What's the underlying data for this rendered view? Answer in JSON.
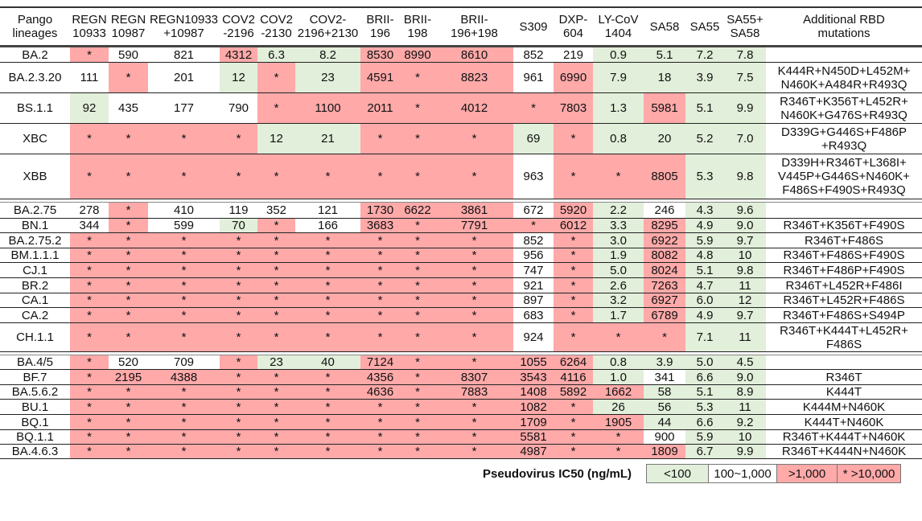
{
  "colors": {
    "low": "#e2efda",
    "mid": "#ffffff",
    "high": "#ffa9a9"
  },
  "headers": [
    "Pango\nlineages",
    "REGN\n10933",
    "REGN\n10987",
    "REGN10933\n+10987",
    "COV2\n-2196",
    "COV2\n-2130",
    "COV2-\n2196+2130",
    "BRII-\n196",
    "BRII-\n198",
    "BRII-\n196+198",
    "S309",
    "DXP-\n604",
    "LY-CoV\n1404",
    "SA58",
    "SA55",
    "SA55+\nSA58",
    "Additional RBD\nmutations"
  ],
  "groups": [
    [
      {
        "lineage": "BA.2",
        "values": [
          "*",
          "590",
          "821",
          "4312",
          "6.3",
          "8.2",
          "8530",
          "8990",
          "8610",
          "852",
          "219",
          "0.9",
          "5.1",
          "7.2",
          "7.8"
        ],
        "mutations": ""
      },
      {
        "lineage": "BA.2.3.20",
        "values": [
          "111",
          "*",
          "201",
          "12",
          "*",
          "23",
          "4591",
          "*",
          "8823",
          "961",
          "6990",
          "7.9",
          "18",
          "3.9",
          "7.5"
        ],
        "mutations": "K444R+N450D+L452M+\nN460K+A484R+R493Q"
      },
      {
        "lineage": "BS.1.1",
        "values": [
          "92",
          "435",
          "177",
          "790",
          "*",
          "1100",
          "2011",
          "*",
          "4012",
          "*",
          "7803",
          "1.3",
          "5981",
          "5.1",
          "9.9"
        ],
        "mutations": "R346T+K356T+L452R+\nN460K+G476S+R493Q"
      },
      {
        "lineage": "XBC",
        "values": [
          "*",
          "*",
          "*",
          "*",
          "12",
          "21",
          "*",
          "*",
          "*",
          "69",
          "*",
          "0.8",
          "20",
          "5.2",
          "7.0"
        ],
        "mutations": "D339G+G446S+F486P\n+R493Q"
      },
      {
        "lineage": "XBB",
        "values": [
          "*",
          "*",
          "*",
          "*",
          "*",
          "*",
          "*",
          "*",
          "*",
          "963",
          "*",
          "*",
          "8805",
          "5.3",
          "9.8"
        ],
        "mutations": "D339H+R346T+L368I+\nV445P+G446S+N460K+\nF486S+F490S+R493Q"
      }
    ],
    [
      {
        "lineage": "BA.2.75",
        "values": [
          "278",
          "*",
          "410",
          "119",
          "352",
          "121",
          "1730",
          "6622",
          "3861",
          "672",
          "5920",
          "2.2",
          "246",
          "4.3",
          "9.6"
        ],
        "mutations": ""
      },
      {
        "lineage": "BN.1",
        "values": [
          "344",
          "*",
          "599",
          "70",
          "*",
          "166",
          "3683",
          "*",
          "7791",
          "*",
          "6012",
          "3.3",
          "8295",
          "4.9",
          "9.0"
        ],
        "mutations": "R346T+K356T+F490S"
      },
      {
        "lineage": "BA.2.75.2",
        "values": [
          "*",
          "*",
          "*",
          "*",
          "*",
          "*",
          "*",
          "*",
          "*",
          "852",
          "*",
          "3.0",
          "6922",
          "5.9",
          "9.7"
        ],
        "mutations": "R346T+F486S"
      },
      {
        "lineage": "BM.1.1.1",
        "values": [
          "*",
          "*",
          "*",
          "*",
          "*",
          "*",
          "*",
          "*",
          "*",
          "956",
          "*",
          "1.9",
          "8082",
          "4.8",
          "10"
        ],
        "mutations": "R346T+F486S+F490S"
      },
      {
        "lineage": "CJ.1",
        "values": [
          "*",
          "*",
          "*",
          "*",
          "*",
          "*",
          "*",
          "*",
          "*",
          "747",
          "*",
          "5.0",
          "8024",
          "5.1",
          "9.8"
        ],
        "mutations": "R346T+F486P+F490S"
      },
      {
        "lineage": "BR.2",
        "values": [
          "*",
          "*",
          "*",
          "*",
          "*",
          "*",
          "*",
          "*",
          "*",
          "921",
          "*",
          "2.6",
          "7263",
          "4.7",
          "11"
        ],
        "mutations": "R346T+L452R+F486I"
      },
      {
        "lineage": "CA.1",
        "values": [
          "*",
          "*",
          "*",
          "*",
          "*",
          "*",
          "*",
          "*",
          "*",
          "897",
          "*",
          "3.2",
          "6927",
          "6.0",
          "12"
        ],
        "mutations": "R346T+L452R+F486S"
      },
      {
        "lineage": "CA.2",
        "values": [
          "*",
          "*",
          "*",
          "*",
          "*",
          "*",
          "*",
          "*",
          "*",
          "683",
          "*",
          "1.7",
          "6789",
          "4.9",
          "9.7"
        ],
        "mutations": "R346T+F486S+S494P"
      },
      {
        "lineage": "CH.1.1",
        "values": [
          "*",
          "*",
          "*",
          "*",
          "*",
          "*",
          "*",
          "*",
          "*",
          "924",
          "*",
          "*",
          "*",
          "7.1",
          "11"
        ],
        "mutations": "R346T+K444T+L452R+\nF486S"
      }
    ],
    [
      {
        "lineage": "BA.4/5",
        "values": [
          "*",
          "520",
          "709",
          "*",
          "23",
          "40",
          "7124",
          "*",
          "*",
          "1055",
          "6264",
          "0.8",
          "3.9",
          "5.0",
          "4.5"
        ],
        "mutations": ""
      },
      {
        "lineage": "BF.7",
        "values": [
          "*",
          "2195",
          "4388",
          "*",
          "*",
          "*",
          "4356",
          "*",
          "8307",
          "3543",
          "4116",
          "1.0",
          "341",
          "6.6",
          "9.0"
        ],
        "mutations": "R346T"
      },
      {
        "lineage": "BA.5.6.2",
        "values": [
          "*",
          "*",
          "*",
          "*",
          "*",
          "*",
          "4636",
          "*",
          "7883",
          "1408",
          "5892",
          "1662",
          "58",
          "5.1",
          "8.9"
        ],
        "mutations": "K444T"
      },
      {
        "lineage": "BU.1",
        "values": [
          "*",
          "*",
          "*",
          "*",
          "*",
          "*",
          "*",
          "*",
          "*",
          "1082",
          "*",
          "26",
          "56",
          "5.3",
          "11"
        ],
        "mutations": "K444M+N460K"
      },
      {
        "lineage": "BQ.1",
        "values": [
          "*",
          "*",
          "*",
          "*",
          "*",
          "*",
          "*",
          "*",
          "*",
          "1709",
          "*",
          "1905",
          "44",
          "6.6",
          "9.2"
        ],
        "mutations": "K444T+N460K"
      },
      {
        "lineage": "BQ.1.1",
        "values": [
          "*",
          "*",
          "*",
          "*",
          "*",
          "*",
          "*",
          "*",
          "*",
          "5581",
          "*",
          "*",
          "900",
          "5.9",
          "10"
        ],
        "mutations": "R346T+K444T+N460K"
      },
      {
        "lineage": "BA.4.6.3",
        "values": [
          "*",
          "*",
          "*",
          "*",
          "*",
          "*",
          "*",
          "*",
          "*",
          "4987",
          "*",
          "*",
          "1809",
          "6.7",
          "9.9"
        ],
        "mutations": "R346T+K444N+N460K"
      }
    ]
  ],
  "legend": {
    "title": "Pseudovirus IC50 (ng/mL)",
    "items": [
      "<100",
      "100~1,000",
      ">1,000",
      "* >10,000"
    ]
  }
}
